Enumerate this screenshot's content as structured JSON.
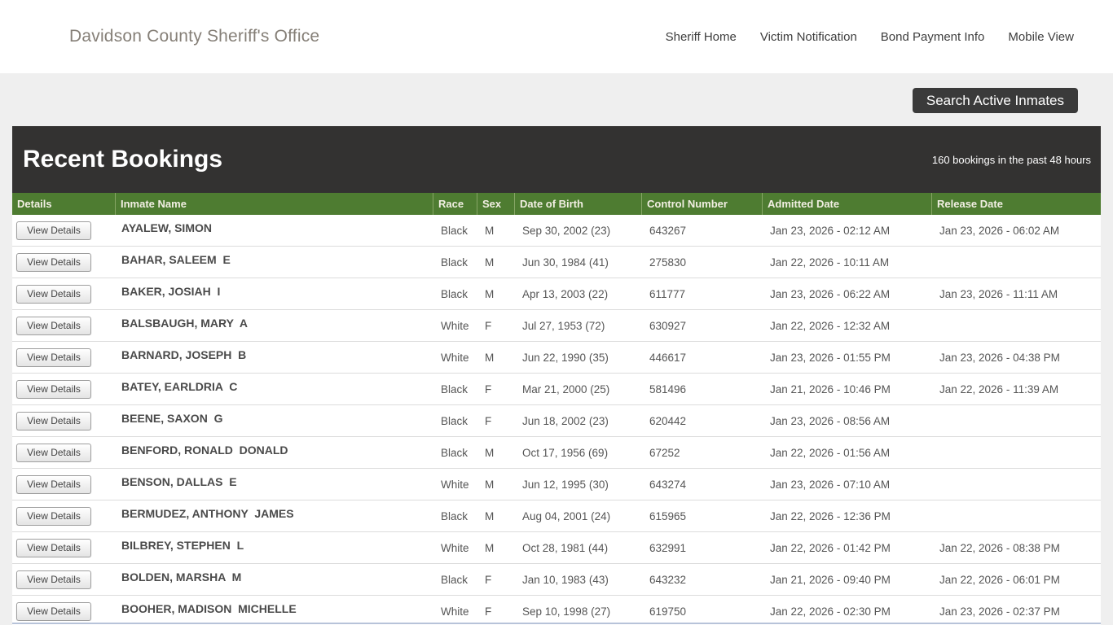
{
  "header": {
    "site_title": "Davidson County Sheriff's Office",
    "nav": [
      {
        "label": "Sheriff Home"
      },
      {
        "label": "Victim Notification"
      },
      {
        "label": "Bond Payment Info"
      },
      {
        "label": "Mobile View"
      }
    ]
  },
  "toolbar": {
    "search_button_label": "Search Active Inmates"
  },
  "bookings": {
    "title": "Recent Bookings",
    "subtitle": "160 bookings in the past 48 hours",
    "view_details_label": "View Details",
    "columns": [
      "Details",
      "Inmate Name",
      "Race",
      "Sex",
      "Date of Birth",
      "Control Number",
      "Admitted Date",
      "Release Date"
    ],
    "rows": [
      {
        "name": "AYALEW, SIMON",
        "race": "Black",
        "sex": "M",
        "dob": "Sep 30, 2002 (23)",
        "control": "643267",
        "admitted": "Jan 23, 2026 - 02:12 AM",
        "released": "Jan 23, 2026 - 06:02 AM"
      },
      {
        "name": "BAHAR, SALEEM  E",
        "race": "Black",
        "sex": "M",
        "dob": "Jun 30, 1984 (41)",
        "control": "275830",
        "admitted": "Jan 22, 2026 - 10:11 AM",
        "released": ""
      },
      {
        "name": "BAKER, JOSIAH  I",
        "race": "Black",
        "sex": "M",
        "dob": "Apr 13, 2003 (22)",
        "control": "611777",
        "admitted": "Jan 23, 2026 - 06:22 AM",
        "released": "Jan 23, 2026 - 11:11 AM"
      },
      {
        "name": "BALSBAUGH, MARY  A",
        "race": "White",
        "sex": "F",
        "dob": "Jul 27, 1953 (72)",
        "control": "630927",
        "admitted": "Jan 22, 2026 - 12:32 AM",
        "released": ""
      },
      {
        "name": "BARNARD, JOSEPH  B",
        "race": "White",
        "sex": "M",
        "dob": "Jun 22, 1990 (35)",
        "control": "446617",
        "admitted": "Jan 23, 2026 - 01:55 PM",
        "released": "Jan 23, 2026 - 04:38 PM"
      },
      {
        "name": "BATEY, EARLDRIA  C",
        "race": "Black",
        "sex": "F",
        "dob": "Mar 21, 2000 (25)",
        "control": "581496",
        "admitted": "Jan 21, 2026 - 10:46 PM",
        "released": "Jan 22, 2026 - 11:39 AM"
      },
      {
        "name": "BEENE, SAXON  G",
        "race": "Black",
        "sex": "F",
        "dob": "Jun 18, 2002 (23)",
        "control": "620442",
        "admitted": "Jan 23, 2026 - 08:56 AM",
        "released": ""
      },
      {
        "name": "BENFORD, RONALD  DONALD",
        "race": "Black",
        "sex": "M",
        "dob": "Oct 17, 1956 (69)",
        "control": "67252",
        "admitted": "Jan 22, 2026 - 01:56 AM",
        "released": ""
      },
      {
        "name": "BENSON, DALLAS  E",
        "race": "White",
        "sex": "M",
        "dob": "Jun 12, 1995 (30)",
        "control": "643274",
        "admitted": "Jan 23, 2026 - 07:10 AM",
        "released": ""
      },
      {
        "name": "BERMUDEZ, ANTHONY  JAMES",
        "race": "Black",
        "sex": "M",
        "dob": "Aug 04, 2001 (24)",
        "control": "615965",
        "admitted": "Jan 22, 2026 - 12:36 PM",
        "released": ""
      },
      {
        "name": "BILBREY, STEPHEN  L",
        "race": "White",
        "sex": "M",
        "dob": "Oct 28, 1981 (44)",
        "control": "632991",
        "admitted": "Jan 22, 2026 - 01:42 PM",
        "released": "Jan 22, 2026 - 08:38 PM"
      },
      {
        "name": "BOLDEN, MARSHA  M",
        "race": "Black",
        "sex": "F",
        "dob": "Jan 10, 1983 (43)",
        "control": "643232",
        "admitted": "Jan 21, 2026 - 09:40 PM",
        "released": "Jan 22, 2026 - 06:01 PM"
      },
      {
        "name": "BOOHER, MADISON  MICHELLE",
        "race": "White",
        "sex": "F",
        "dob": "Sep 10, 1998 (27)",
        "control": "619750",
        "admitted": "Jan 22, 2026 - 02:30 PM",
        "released": "Jan 23, 2026 - 02:37 PM"
      }
    ]
  },
  "colors": {
    "accent_green": "#4e7c31",
    "dark_bar": "#333231",
    "page_bg": "#efefef",
    "bottom_divider_blue": "#b7c3d9"
  }
}
